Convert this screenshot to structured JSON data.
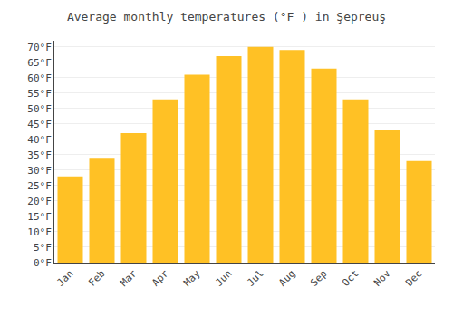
{
  "chart_data": {
    "type": "bar",
    "title": "Average monthly temperatures (°F ) in Şepreuş",
    "categories": [
      "Jan",
      "Feb",
      "Mar",
      "Apr",
      "May",
      "Jun",
      "Jul",
      "Aug",
      "Sep",
      "Oct",
      "Nov",
      "Dec"
    ],
    "values": [
      28,
      34,
      42,
      53,
      61,
      67,
      70,
      69,
      63,
      53,
      43,
      33
    ],
    "color": "#FFC125",
    "ylim": [
      0,
      72
    ],
    "yticks": [
      {
        "value": 0,
        "label": "0°F"
      },
      {
        "value": 5,
        "label": "5°F"
      },
      {
        "value": 10,
        "label": "10°F"
      },
      {
        "value": 15,
        "label": "15°F"
      },
      {
        "value": 20,
        "label": "20°F"
      },
      {
        "value": 25,
        "label": "25°F"
      },
      {
        "value": 30,
        "label": "30°F"
      },
      {
        "value": 35,
        "label": "35°F"
      },
      {
        "value": 40,
        "label": "40°F"
      },
      {
        "value": 45,
        "label": "45°F"
      },
      {
        "value": 50,
        "label": "50°F"
      },
      {
        "value": 55,
        "label": "55°F"
      },
      {
        "value": 60,
        "label": "60°F"
      },
      {
        "value": 65,
        "label": "65°F"
      },
      {
        "value": 70,
        "label": "70°F"
      }
    ],
    "grid": true
  }
}
